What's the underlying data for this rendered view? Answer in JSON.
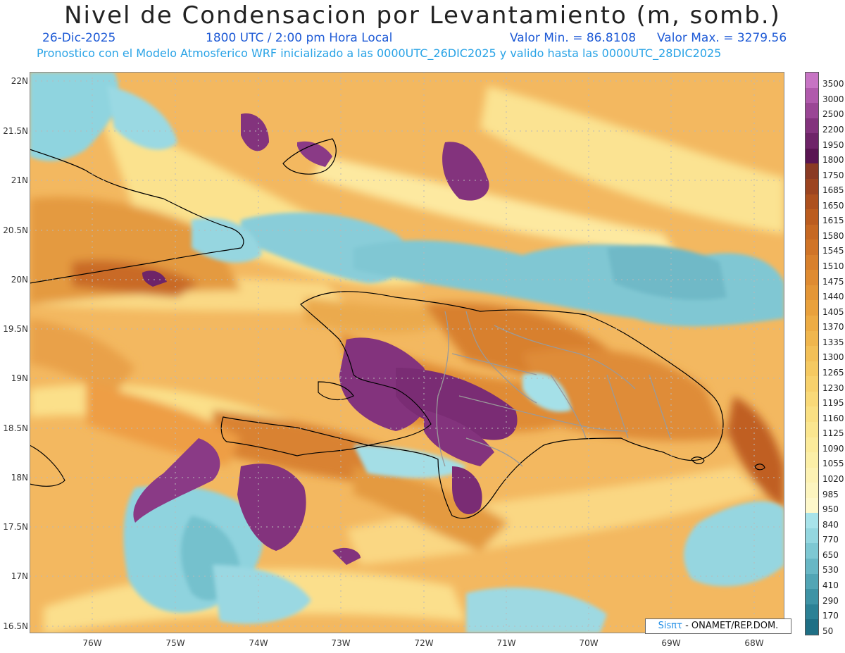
{
  "title": "Nivel de Condensacion por Levantamiento (m, somb.)",
  "date": "26-Dic-2025",
  "time": "1800 UTC / 2:00 pm Hora Local",
  "vmin": "Valor Min. = 86.8108",
  "vmax": "Valor Max. = 3279.56",
  "forecast": "Pronostico con el Modelo Atmosferico WRF inicializado a las 0000UTC_26DIC2025 y valido hasta las  0000UTC_28DIC2025",
  "credit_logo": "Sisπτ",
  "credit_text": " - ONAMET/REP.DOM.",
  "lat_labels": [
    "22N",
    "21.5N",
    "21N",
    "20.5N",
    "20N",
    "19.5N",
    "19N",
    "18.5N",
    "18N",
    "17.5N",
    "17N",
    "16.5N"
  ],
  "lon_labels": [
    "76W",
    "75W",
    "74W",
    "73W",
    "72W",
    "71W",
    "70W",
    "69W",
    "68W"
  ],
  "colorbar": {
    "levels": [
      "3500",
      "3000",
      "2500",
      "2200",
      "1950",
      "1800",
      "1750",
      "1685",
      "1650",
      "1615",
      "1580",
      "1545",
      "1510",
      "1475",
      "1440",
      "1405",
      "1370",
      "1335",
      "1300",
      "1265",
      "1230",
      "1195",
      "1160",
      "1125",
      "1090",
      "1055",
      "1020",
      "985",
      "950",
      "840",
      "770",
      "650",
      "530",
      "410",
      "290",
      "170",
      "50"
    ],
    "colors": [
      "#c774c4",
      "#b05aac",
      "#9a4695",
      "#83337d",
      "#6e2468",
      "#5a1552",
      "#8a3a24",
      "#9c4420",
      "#ad501e",
      "#bb5c1f",
      "#c66822",
      "#d07427",
      "#d8802c",
      "#df8b31",
      "#e49636",
      "#e9a13c",
      "#edac44",
      "#f0b64d",
      "#f3c057",
      "#f5c961",
      "#f7d16c",
      "#f9d978",
      "#fae083",
      "#fbe68f",
      "#fceb9b",
      "#fcefa7",
      "#fdf2b3",
      "#fdf5bf",
      "#fef8cb",
      "#a8e3ea",
      "#94d7e0",
      "#7ec8d3",
      "#68b7c5",
      "#52a5b5",
      "#3e93a5",
      "#2c8195",
      "#1f6f85"
    ]
  }
}
